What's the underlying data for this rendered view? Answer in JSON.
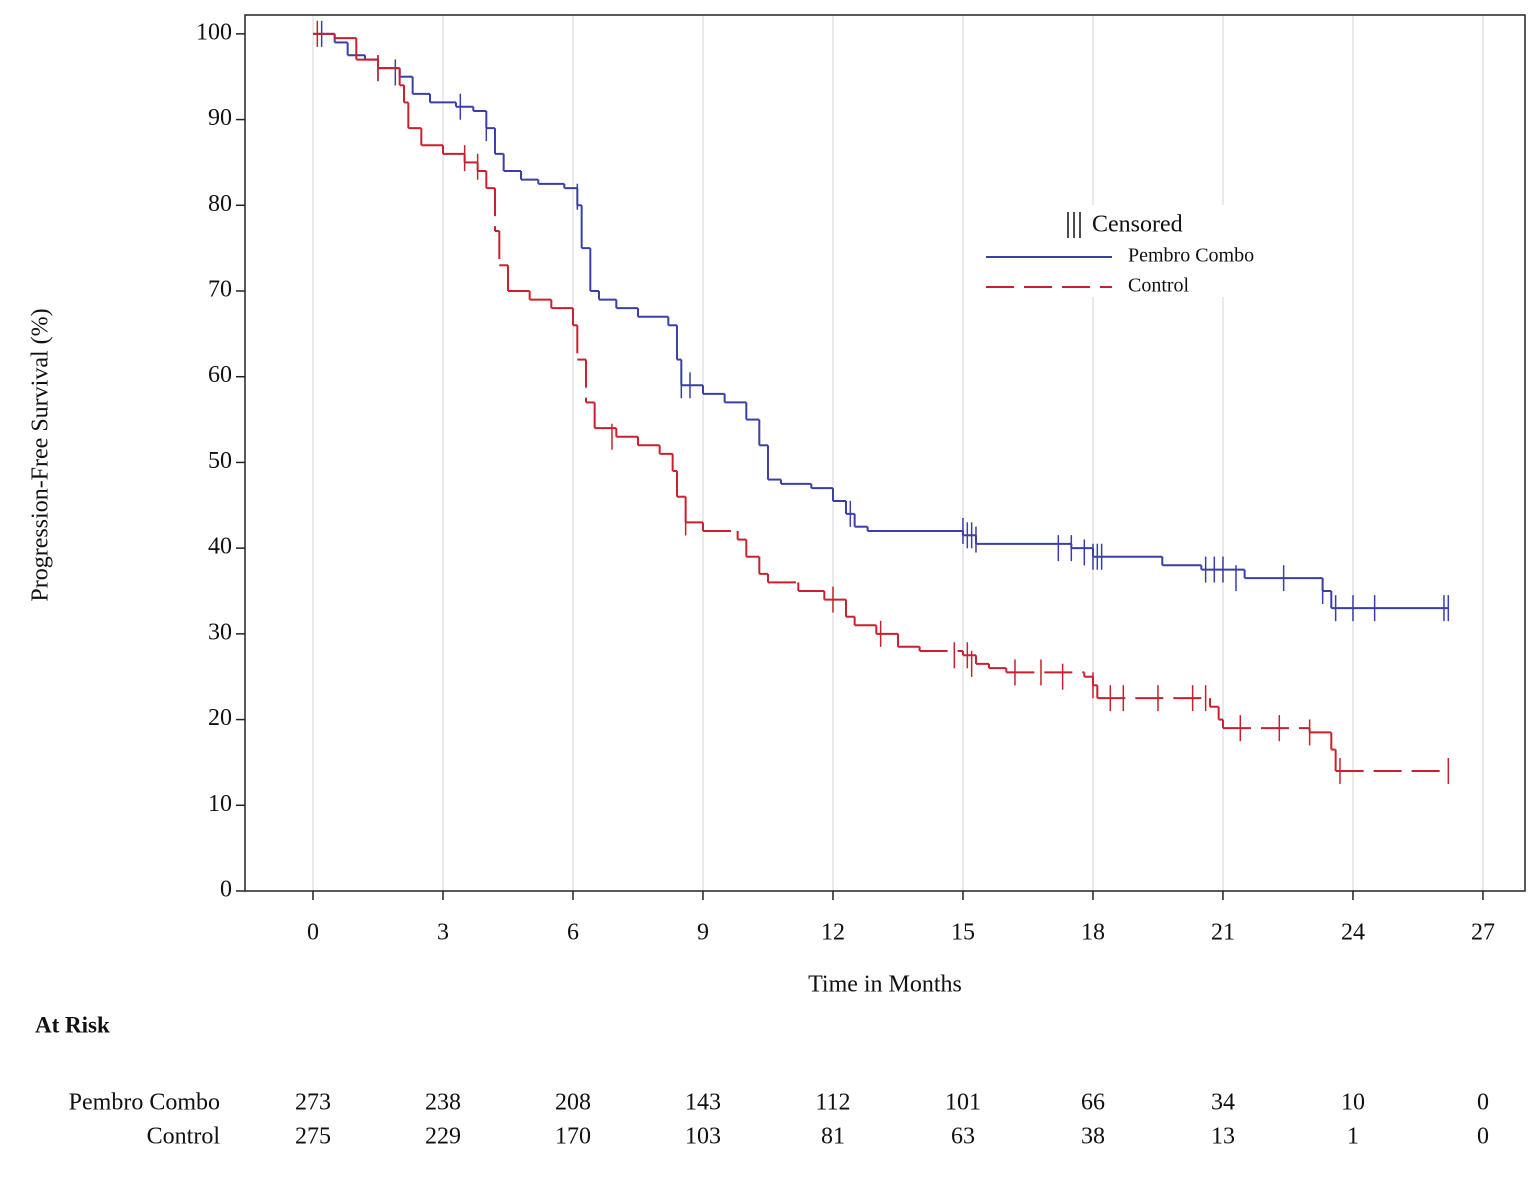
{
  "chart_data": {
    "type": "km",
    "x_label": "Time in Months",
    "y_label": "Progression-Free Survival (%)",
    "xlim": [
      -1.569,
      27.97
    ],
    "ylim": [
      0,
      102.2
    ],
    "xticks": [
      0,
      3,
      6,
      9,
      12,
      15,
      18,
      21,
      24,
      27
    ],
    "yticks": [
      0,
      10,
      20,
      30,
      40,
      50,
      60,
      70,
      80,
      90,
      100
    ],
    "grid": "x",
    "legend_title": "Censored",
    "series": [
      {
        "name": "Pembro Combo",
        "color": "#3a3fa8",
        "dash": false,
        "x": [
          0,
          0.3,
          0.5,
          0.8,
          1.2,
          1.5,
          2,
          2.3,
          2.7,
          3.3,
          3.7,
          4.0,
          4.2,
          4.4,
          4.8,
          5.2,
          5.8,
          6.1,
          6.2,
          6.4,
          6.6,
          7,
          7.5,
          8.2,
          8.4,
          8.5,
          9,
          9.5,
          10,
          10.3,
          10.5,
          10.8,
          11.5,
          12,
          12.3,
          12.5,
          12.8,
          15,
          15.3,
          17.5,
          18,
          19.6,
          20.5,
          21.5,
          23.3,
          23.5,
          26.2
        ],
        "values": [
          100,
          100,
          99,
          97.5,
          97,
          96,
          95,
          93,
          92,
          91.5,
          91,
          89,
          86,
          84,
          83,
          82.5,
          82,
          80,
          75,
          70,
          69,
          68,
          67,
          66,
          62,
          59,
          58,
          57,
          55,
          52,
          48,
          47.5,
          47,
          45.5,
          44,
          42.5,
          42,
          41.5,
          40.5,
          40,
          39,
          38,
          37.5,
          36.5,
          35,
          33,
          33
        ],
        "censor_x": [
          0.2,
          1.5,
          1.9,
          3.4,
          4.0,
          6.1,
          8.5,
          8.7,
          12.4,
          15.0,
          15.1,
          15.2,
          15.3,
          17.2,
          17.5,
          17.8,
          18.0,
          18.1,
          18.2,
          20.6,
          20.8,
          21.0,
          21.3,
          22.4,
          23.3,
          23.6,
          24.0,
          24.5,
          26.1,
          26.2
        ],
        "censor_values": [
          100,
          96,
          95.5,
          91.5,
          89,
          81,
          59,
          59,
          44,
          42,
          41.5,
          41.5,
          41,
          40,
          40,
          39.5,
          39,
          39,
          39,
          37.5,
          37.5,
          37.5,
          36.5,
          36.5,
          35,
          33,
          33,
          33,
          33,
          33
        ]
      },
      {
        "name": "Control",
        "color": "#c8202f",
        "dash": true,
        "x": [
          0,
          0.5,
          1,
          1.5,
          2,
          2.1,
          2.2,
          2.5,
          3,
          3.5,
          3.8,
          4,
          4.2,
          4.3,
          4.5,
          5,
          5.5,
          6,
          6.1,
          6.3,
          6.5,
          7,
          7.5,
          8,
          8.3,
          8.4,
          8.6,
          9,
          9.8,
          10,
          10.3,
          10.5,
          11.2,
          11.8,
          12.3,
          12.5,
          13,
          13.5,
          14,
          15,
          15.3,
          15.6,
          16,
          17.8,
          18,
          18.1,
          20.7,
          20.9,
          21,
          23,
          23.5,
          23.6,
          26.2
        ],
        "values": [
          100,
          99.5,
          97,
          96,
          94,
          92,
          89,
          87,
          86,
          85,
          84,
          82,
          77,
          73,
          70,
          69,
          68,
          66,
          62,
          57,
          54,
          53,
          52,
          51,
          49,
          46,
          43,
          42,
          41,
          39,
          37,
          36,
          35,
          34,
          32,
          31,
          30,
          28.5,
          28,
          27.5,
          26.5,
          26,
          25.5,
          25,
          24,
          22.5,
          21.5,
          20,
          19,
          18.5,
          16.5,
          14,
          14
        ],
        "censor_x": [
          0.1,
          1.5,
          3.5,
          3.8,
          6.9,
          8.6,
          12.0,
          13.1,
          14.8,
          15.1,
          15.2,
          16.2,
          16.8,
          17.3,
          18.0,
          18.4,
          18.7,
          19.5,
          20.3,
          20.6,
          21.4,
          22.3,
          23.0,
          23.7,
          26.2
        ],
        "censor_values": [
          100,
          96,
          85.5,
          84.5,
          53,
          43,
          34,
          30,
          27.5,
          27.5,
          26.5,
          25.5,
          25.5,
          25,
          24,
          22.5,
          22.5,
          22.5,
          22.5,
          22.5,
          19,
          19,
          18.5,
          14,
          14
        ]
      }
    ],
    "at_risk": {
      "title": "At Risk",
      "rows": [
        [
          273,
          238,
          208,
          143,
          112,
          101,
          66,
          34,
          10,
          0
        ],
        [
          275,
          229,
          170,
          103,
          81,
          63,
          38,
          13,
          1,
          0
        ]
      ]
    }
  }
}
